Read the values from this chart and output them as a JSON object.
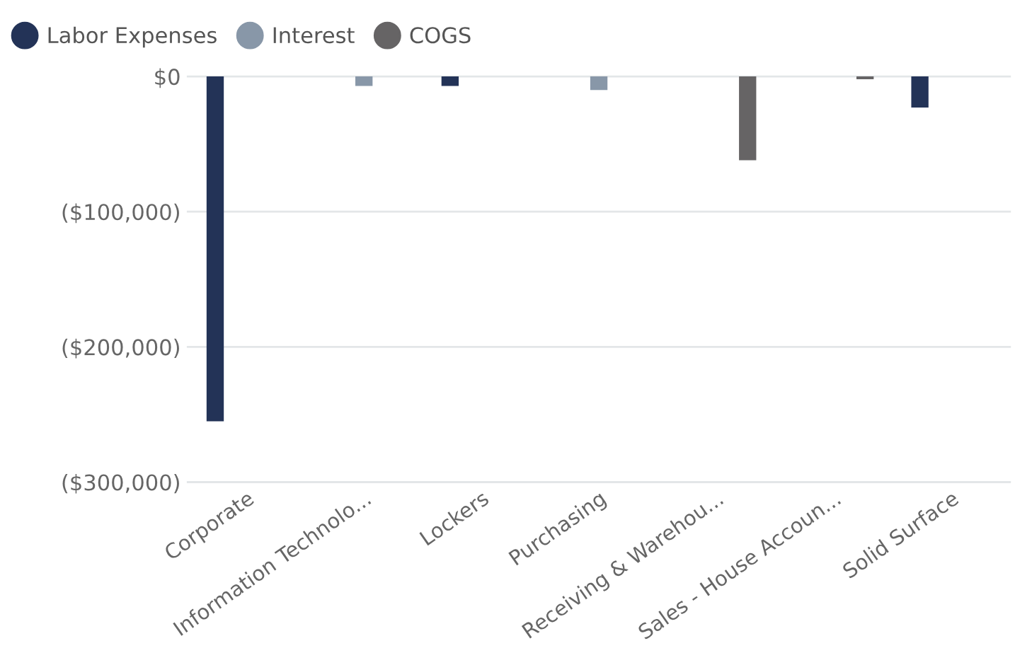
{
  "chart_data": {
    "type": "bar",
    "categories": [
      "Corporate",
      "Information Technolo...",
      "Lockers",
      "Purchasing",
      "Receiving & Warehou...",
      "Sales - House Accoun...",
      "Solid Surface"
    ],
    "series": [
      {
        "name": "Labor Expenses",
        "color": "#233357",
        "values": [
          -255000,
          null,
          -7000,
          null,
          null,
          null,
          -23000
        ]
      },
      {
        "name": "Interest",
        "color": "#8897a8",
        "values": [
          null,
          -7000,
          null,
          -10000,
          null,
          null,
          null
        ]
      },
      {
        "name": "COGS",
        "color": "#666465",
        "values": [
          null,
          null,
          null,
          null,
          -62000,
          -2000,
          null
        ]
      }
    ],
    "ylim": [
      -300000,
      0
    ],
    "yticks": [
      {
        "value": 0,
        "label": "$0"
      },
      {
        "value": -100000,
        "label": "($100,000)"
      },
      {
        "value": -200000,
        "label": "($200,000)"
      },
      {
        "value": -300000,
        "label": "($300,000)"
      }
    ],
    "grid": "y",
    "legend": "top left"
  }
}
